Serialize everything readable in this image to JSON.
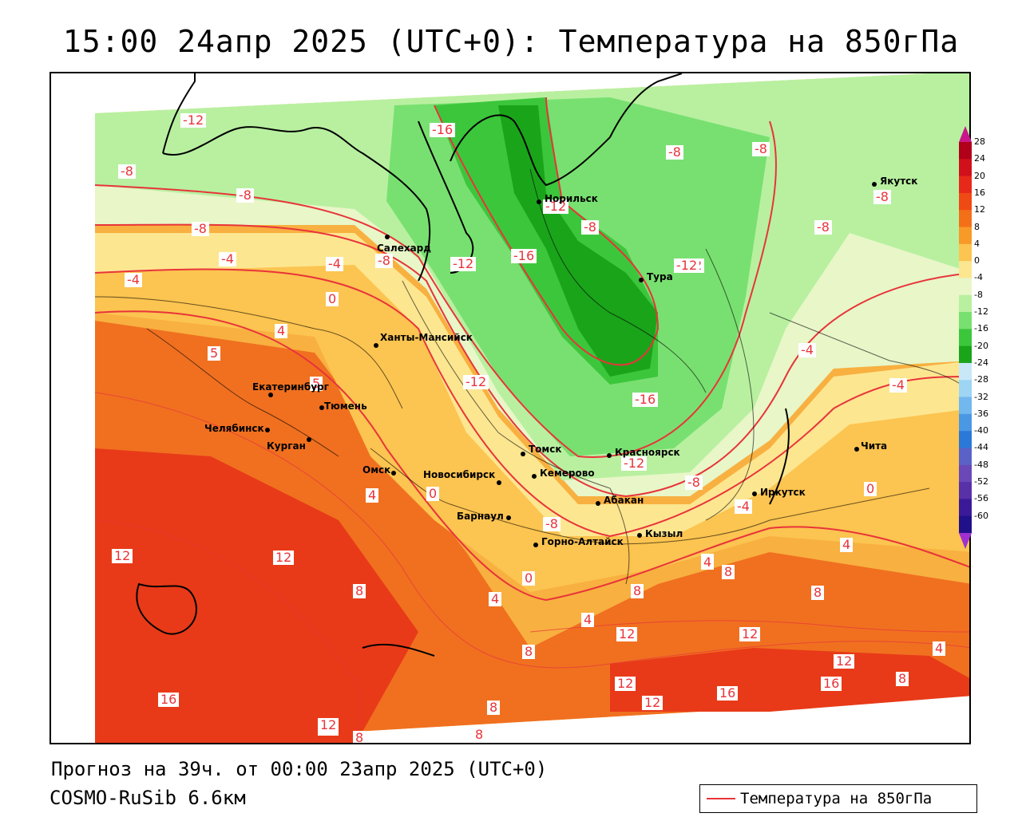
{
  "title": "15:00 24апр 2025 (UTC+0): Температура на 850гПа",
  "footer": {
    "forecast": "Прогноз на 39ч. от 00:00 23апр 2025 (UTC+0)",
    "model": "COSMO-RuSib 6.6км"
  },
  "legend": {
    "label": "Температура на 850гПа",
    "line_color": "#e8343a"
  },
  "colorbar": {
    "ticks": [
      "28",
      "24",
      "20",
      "16",
      "12",
      "8",
      "4",
      "0",
      "-4",
      "-8",
      "-12",
      "-16",
      "-20",
      "-24",
      "-28",
      "-32",
      "-36",
      "-40",
      "-44",
      "-48",
      "-52",
      "-56",
      "-60"
    ],
    "colors": [
      "#b0001a",
      "#d0101a",
      "#e8281a",
      "#f04a14",
      "#f47018",
      "#f89a28",
      "#fcc450",
      "#fde690",
      "#e8f6c8",
      "#b8f0a0",
      "#78e070",
      "#3cc63c",
      "#1aa41a",
      "#c8e8f8",
      "#9ed4f4",
      "#72b8ee",
      "#4a98e4",
      "#2a78d8",
      "#5a62c8",
      "#6a48b8",
      "#5830a8",
      "#3a1a98",
      "#20108a"
    ],
    "top_arrow_color": "#c8188a",
    "bottom_arrow_color": "#a030d0"
  },
  "cities": [
    {
      "name": "Якутск"
    },
    {
      "name": "Норильск"
    },
    {
      "name": "Салехард"
    },
    {
      "name": "Тура"
    },
    {
      "name": "Ханты-Мансийск"
    },
    {
      "name": "Екатеринбург"
    },
    {
      "name": "Тюмень"
    },
    {
      "name": "Челябинск"
    },
    {
      "name": "Курган"
    },
    {
      "name": "Омск"
    },
    {
      "name": "Новосибирск"
    },
    {
      "name": "Томск"
    },
    {
      "name": "Кемерово"
    },
    {
      "name": "Красноярск"
    },
    {
      "name": "Абакан"
    },
    {
      "name": "Барнаул"
    },
    {
      "name": "Горно-Алтайск"
    },
    {
      "name": "Кызыл"
    },
    {
      "name": "Иркутск"
    },
    {
      "name": "Чита"
    }
  ],
  "isotherm_labels": [
    "-12",
    "-16",
    "-8",
    "-8",
    "-8",
    "-8",
    "-12",
    "-8",
    "-8",
    "-8",
    "-4",
    "-4",
    "-8",
    "-16",
    "-12",
    "-12",
    "-8",
    "-12",
    "0",
    "-4",
    "-12",
    "-16",
    "-4",
    "4",
    "5",
    "5",
    "-12",
    "-4",
    "-8",
    "4",
    "0",
    "-4",
    "0",
    "-8",
    "4",
    "4",
    "12",
    "12",
    "8",
    "4",
    "4",
    "0",
    "8",
    "4",
    "8",
    "8",
    "4",
    "12",
    "12",
    "8",
    "12",
    "12",
    "16",
    "16",
    "12",
    "12",
    "16",
    "8",
    "8",
    "12",
    "8",
    "8"
  ]
}
